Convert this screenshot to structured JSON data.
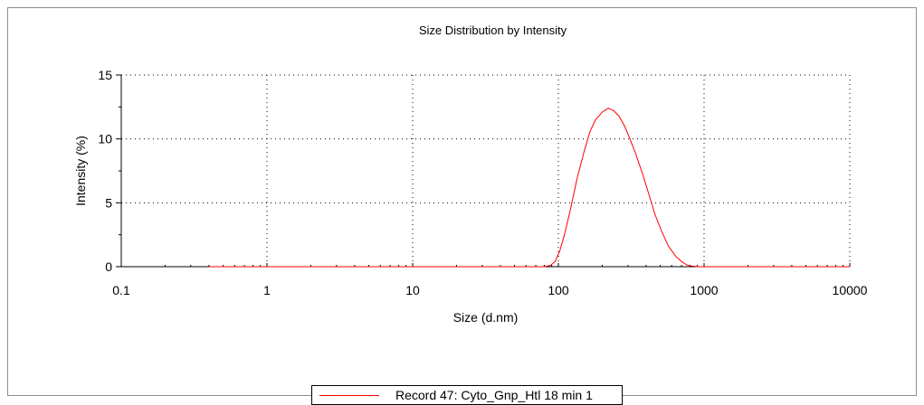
{
  "chart_data": {
    "type": "line",
    "title": "Size Distribution by Intensity",
    "xlabel": "Size (d.nm)",
    "ylabel": "Intensity (%)",
    "xscale": "log",
    "xlim": [
      0.1,
      10000
    ],
    "ylim": [
      0,
      15
    ],
    "x_ticks": [
      0.1,
      1,
      10,
      100,
      1000,
      10000
    ],
    "x_tick_labels": [
      "0.1",
      "1",
      "10",
      "100",
      "1000",
      "10000"
    ],
    "y_ticks": [
      0,
      5,
      10,
      15
    ],
    "y_tick_labels": [
      "0",
      "5",
      "10",
      "15"
    ],
    "grid": true,
    "legend_position": "bottom-center",
    "series": [
      {
        "name": "Record 47: Cyto_Gnp_Htl 18 min 1",
        "color": "#ff0000",
        "x": [
          0.4,
          80,
          88,
          95,
          102,
          110,
          120,
          135,
          150,
          165,
          180,
          200,
          220,
          240,
          260,
          285,
          310,
          340,
          380,
          420,
          460,
          510,
          570,
          640,
          700,
          760,
          820,
          900,
          1000,
          10000
        ],
        "y": [
          0,
          0,
          0.1,
          0.4,
          1.2,
          2.5,
          4.3,
          7.0,
          9.0,
          10.6,
          11.5,
          12.1,
          12.4,
          12.2,
          11.8,
          11.0,
          10.0,
          8.8,
          7.2,
          5.6,
          4.1,
          2.8,
          1.6,
          0.8,
          0.4,
          0.15,
          0.05,
          0,
          0,
          0
        ]
      }
    ]
  }
}
